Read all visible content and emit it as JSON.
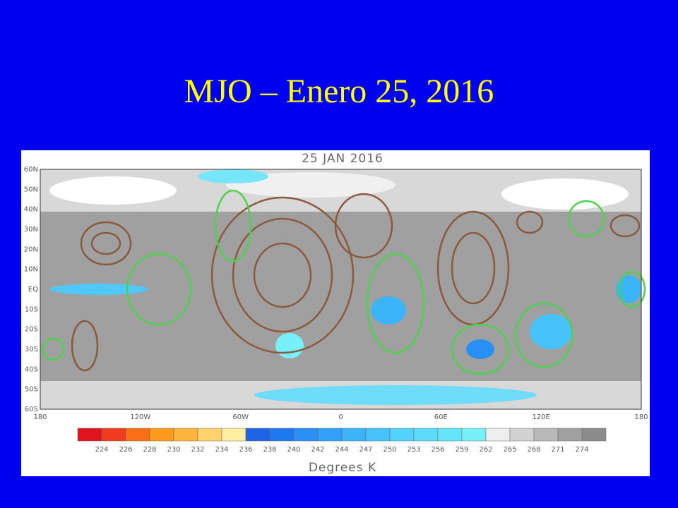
{
  "slide": {
    "title": "MJO – Enero 25, 2016"
  },
  "map": {
    "title": "25 JAN 2016",
    "lat_labels": [
      "60N",
      "50N",
      "40N",
      "30N",
      "20N",
      "10N",
      "EQ",
      "10S",
      "20S",
      "30S",
      "40S",
      "50S",
      "60S"
    ],
    "lon_labels": [
      "180",
      "120W",
      "60W",
      "0",
      "60E",
      "120E",
      "180"
    ],
    "colorbar": {
      "labels": [
        224,
        226,
        228,
        230,
        232,
        234,
        236,
        238,
        240,
        242,
        244,
        247,
        250,
        253,
        256,
        259,
        262,
        265,
        268,
        271,
        274
      ],
      "colors": [
        "#e0141e",
        "#f03c1e",
        "#fa6e14",
        "#fc9a1e",
        "#fdb43c",
        "#fed26e",
        "#fef0a0",
        "#1e64e6",
        "#1e78f0",
        "#2890f5",
        "#32a0f8",
        "#3cb4fa",
        "#46c3fa",
        "#50d2fa",
        "#5adcfa",
        "#64e6fa",
        "#78f0fa",
        "#eeeeee",
        "#d2d2d2",
        "#b9b9b9",
        "#a0a0a0",
        "#8c8c8c"
      ],
      "label": "Degrees K"
    }
  }
}
